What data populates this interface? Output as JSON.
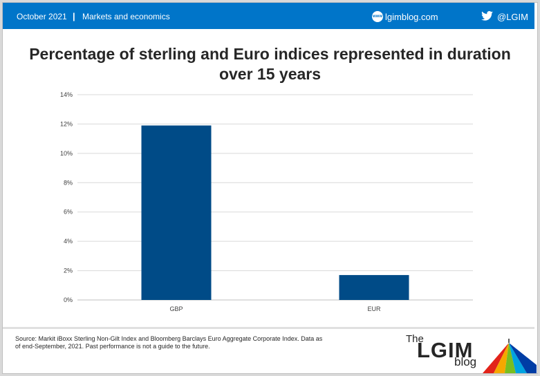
{
  "header": {
    "date": "October 2021",
    "separator": "|",
    "section": "Markets and economics",
    "site": "lgimblog.com",
    "site_icon_text": "www",
    "twitter_handle": "@LGIM",
    "bar_color": "#0075c9"
  },
  "title": "Percentage of sterling and Euro indices represented in duration over 15 years",
  "chart_data": {
    "type": "bar",
    "categories": [
      "GBP",
      "EUR"
    ],
    "values": [
      11.9,
      1.7
    ],
    "y_ticks": [
      "0%",
      "2%",
      "4%",
      "6%",
      "8%",
      "10%",
      "12%",
      "14%"
    ],
    "ylim": [
      0,
      14
    ],
    "grid": true,
    "bar_color": "#004b87",
    "title": "Percentage of sterling and Euro indices represented in duration over 15 years",
    "xlabel": "",
    "ylabel": ""
  },
  "footer": {
    "source": "Source: Markit iBoxx Sterling Non-Gilt Index and Bloomberg Barclays Euro Aggregate Corporate Index. Data as of end-September, 2021. Past performance is not a guide to the future."
  },
  "logo": {
    "the": "The",
    "lgim": "LGIM",
    "blog": "blog"
  }
}
